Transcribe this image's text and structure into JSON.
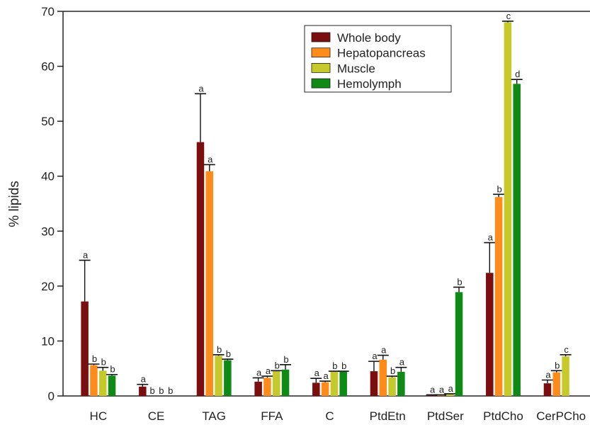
{
  "chart_data": {
    "type": "bar",
    "ylabel": "% lipids",
    "ylim": [
      0,
      70
    ],
    "yticks": [
      0,
      10,
      20,
      30,
      40,
      50,
      60,
      70
    ],
    "categories": [
      "HC",
      "CE",
      "TAG",
      "FFA",
      "C",
      "PtdEtn",
      "PtdSer",
      "PtdCho",
      "CerPCho"
    ],
    "legend_position": "top-right",
    "grid": false,
    "series": [
      {
        "name": "Whole body",
        "color": "#7b0f0f",
        "values": [
          17.2,
          1.7,
          46.2,
          2.6,
          2.4,
          4.5,
          0.1,
          22.4,
          2.3
        ],
        "errors": [
          7.5,
          0.4,
          8.8,
          0.7,
          0.8,
          1.8,
          0.1,
          5.5,
          0.6
        ],
        "sig": [
          "a",
          "a",
          "a",
          "a",
          "a",
          "a",
          "a",
          "a",
          "a"
        ]
      },
      {
        "name": "Hepatopancreas",
        "color": "#ff8c1a",
        "values": [
          5.6,
          0,
          40.9,
          3.3,
          2.5,
          6.6,
          0.1,
          36.2,
          4.3
        ],
        "errors": [
          0.2,
          0,
          1.2,
          0.3,
          0.2,
          0.8,
          0.1,
          0.5,
          0.3
        ],
        "sig": [
          "b",
          "b",
          "a",
          "a",
          "a",
          "a",
          "a",
          "b",
          "b"
        ]
      },
      {
        "name": "Muscle",
        "color": "#c6c92a",
        "values": [
          4.6,
          0,
          7.3,
          4.5,
          4.4,
          3.4,
          0.3,
          68.0,
          7.2
        ],
        "errors": [
          0.6,
          0,
          0.2,
          0.1,
          0.1,
          0.2,
          0.1,
          0.2,
          0.3
        ],
        "sig": [
          "b",
          "b",
          "b",
          "b",
          "b",
          "b",
          "a",
          "c",
          "c"
        ]
      },
      {
        "name": "Hemolymph",
        "color": "#0f8a14",
        "values": [
          3.7,
          0,
          6.5,
          4.8,
          4.4,
          4.4,
          18.9,
          56.8,
          null
        ],
        "errors": [
          0.2,
          0,
          0.2,
          0.9,
          0.1,
          0.8,
          0.9,
          0.8,
          null
        ],
        "sig": [
          "b",
          "b",
          "b",
          "b",
          "b",
          "a",
          "b",
          "d",
          null
        ]
      }
    ]
  }
}
